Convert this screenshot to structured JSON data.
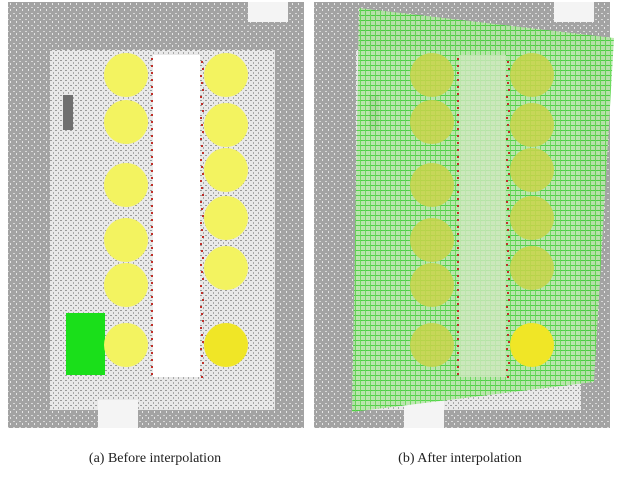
{
  "figure": {
    "panels": [
      {
        "caption": "(a) Before interpolation"
      },
      {
        "caption": "(b) After interpolation"
      }
    ]
  }
}
